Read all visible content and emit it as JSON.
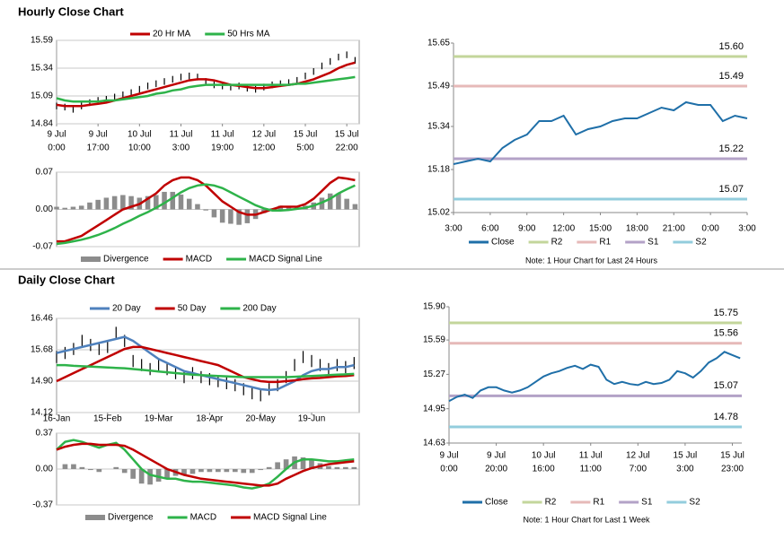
{
  "sections": [
    "Hourly Close Chart",
    "Daily Close Chart"
  ],
  "chart_data": [
    {
      "type": "price",
      "xlim": [
        0,
        36.5
      ],
      "ylim": [
        14.84,
        15.59
      ],
      "yticks": [
        14.84,
        15.09,
        15.34,
        15.59
      ],
      "grid": true,
      "xticks": [
        {
          "value": 0,
          "label": [
            "9 Jul",
            "0:00"
          ]
        },
        {
          "value": 5,
          "label": [
            "9 Jul",
            "17:00"
          ]
        },
        {
          "value": 10,
          "label": [
            "10 Jul",
            "10:00"
          ]
        },
        {
          "value": 15,
          "label": [
            "11 Jul",
            "3:00"
          ]
        },
        {
          "value": 20,
          "label": [
            "11 Jul",
            "19:00"
          ]
        },
        {
          "value": 25,
          "label": [
            "12 Jul",
            "12:00"
          ]
        },
        {
          "value": 30,
          "label": [
            "15 Jul",
            "5:00"
          ]
        },
        {
          "value": 35,
          "label": [
            "15 Jul",
            "22:00"
          ]
        }
      ],
      "price": {
        "color": "#000000",
        "high": [
          15.03,
          15.02,
          15.0,
          15.03,
          15.06,
          15.08,
          15.09,
          15.11,
          15.13,
          15.15,
          15.18,
          15.21,
          15.23,
          15.25,
          15.27,
          15.29,
          15.3,
          15.29,
          15.25,
          15.22,
          15.21,
          15.2,
          15.21,
          15.19,
          15.18,
          15.2,
          15.22,
          15.23,
          15.24,
          15.26,
          15.3,
          15.34,
          15.39,
          15.43,
          15.47,
          15.49,
          15.44
        ],
        "low": [
          14.97,
          14.96,
          14.94,
          14.97,
          15.0,
          15.02,
          15.03,
          15.05,
          15.07,
          15.09,
          15.12,
          15.15,
          15.17,
          15.19,
          15.21,
          15.23,
          15.24,
          15.23,
          15.19,
          15.16,
          15.15,
          15.14,
          15.15,
          15.13,
          15.12,
          15.14,
          15.16,
          15.17,
          15.18,
          15.2,
          15.24,
          15.28,
          15.33,
          15.37,
          15.41,
          15.43,
          15.38
        ]
      },
      "series": [
        {
          "name": "20 Hr MA",
          "color": "#c00000",
          "values": [
            15.01,
            15.0,
            15.0,
            15.0,
            15.01,
            15.02,
            15.03,
            15.05,
            15.07,
            15.09,
            15.11,
            15.13,
            15.15,
            15.17,
            15.19,
            15.21,
            15.23,
            15.24,
            15.24,
            15.23,
            15.21,
            15.19,
            15.18,
            15.17,
            15.16,
            15.16,
            15.17,
            15.18,
            15.19,
            15.2,
            15.22,
            15.24,
            15.27,
            15.3,
            15.34,
            15.37,
            15.39
          ]
        },
        {
          "name": "50 Hrs MA",
          "color": "#2eb34a",
          "values": [
            15.07,
            15.05,
            15.04,
            15.04,
            15.04,
            15.04,
            15.05,
            15.05,
            15.06,
            15.07,
            15.08,
            15.09,
            15.11,
            15.12,
            15.14,
            15.15,
            15.17,
            15.18,
            15.19,
            15.19,
            15.19,
            15.19,
            15.19,
            15.19,
            15.19,
            15.19,
            15.19,
            15.19,
            15.19,
            15.2,
            15.2,
            15.21,
            15.22,
            15.23,
            15.24,
            15.25,
            15.26
          ]
        }
      ]
    },
    {
      "type": "macd",
      "xlim": [
        0,
        36.5
      ],
      "ylim": [
        -0.07,
        0.07
      ],
      "yticks": [
        -0.07,
        {
          "value": 0,
          "label": "0.00"
        },
        0.07
      ],
      "grid": true,
      "series": [
        {
          "name": "Divergence",
          "type": "bar",
          "color": "#8c8c8c",
          "values": [
            0.005,
            0.003,
            0.005,
            0.007,
            0.013,
            0.018,
            0.022,
            0.025,
            0.027,
            0.025,
            0.022,
            0.025,
            0.027,
            0.033,
            0.033,
            0.028,
            0.02,
            0.01,
            -0.002,
            -0.015,
            -0.025,
            -0.027,
            -0.029,
            -0.026,
            -0.018,
            -0.007,
            0.002,
            0.007,
            0.006,
            0.004,
            0.007,
            0.013,
            0.022,
            0.03,
            0.03,
            0.02,
            0.01
          ]
        },
        {
          "name": "MACD",
          "type": "line",
          "color": "#c00000",
          "values": [
            -0.06,
            -0.06,
            -0.055,
            -0.05,
            -0.04,
            -0.03,
            -0.02,
            -0.01,
            0,
            0.005,
            0.01,
            0.02,
            0.03,
            0.045,
            0.055,
            0.06,
            0.06,
            0.055,
            0.045,
            0.03,
            0.015,
            0.005,
            -0.005,
            -0.01,
            -0.01,
            -0.005,
            0,
            0.005,
            0.005,
            0.005,
            0.01,
            0.02,
            0.035,
            0.05,
            0.06,
            0.058,
            0.055
          ]
        },
        {
          "name": "MACD Signal Line",
          "type": "line",
          "color": "#2eb34a",
          "values": [
            -0.065,
            -0.063,
            -0.06,
            -0.057,
            -0.053,
            -0.048,
            -0.042,
            -0.035,
            -0.027,
            -0.02,
            -0.012,
            -0.005,
            0.003,
            0.012,
            0.022,
            0.032,
            0.04,
            0.045,
            0.047,
            0.045,
            0.04,
            0.032,
            0.024,
            0.016,
            0.008,
            0.002,
            -0.002,
            -0.002,
            -0.001,
            0.001,
            0.003,
            0.007,
            0.013,
            0.02,
            0.03,
            0.038,
            0.045
          ]
        }
      ]
    },
    {
      "type": "levels",
      "xlim": [
        0,
        24
      ],
      "ylim": [
        15.02,
        15.65
      ],
      "yticks": [
        15.02,
        15.18,
        15.34,
        15.49,
        15.65
      ],
      "grid": false,
      "xticks": [
        {
          "value": 0,
          "label": "3:00"
        },
        {
          "value": 3,
          "label": "6:00"
        },
        {
          "value": 6,
          "label": "9:00"
        },
        {
          "value": 9,
          "label": "12:00"
        },
        {
          "value": 12,
          "label": "15:00"
        },
        {
          "value": 15,
          "label": "18:00"
        },
        {
          "value": 18,
          "label": "21:00"
        },
        {
          "value": 21,
          "label": "0:00"
        },
        {
          "value": 24,
          "label": "3:00"
        }
      ],
      "series": [
        {
          "name": "Close",
          "type": "line",
          "color": "#1f6fa8",
          "values": [
            15.2,
            15.21,
            15.22,
            15.21,
            15.26,
            15.29,
            15.31,
            15.36,
            15.36,
            15.38,
            15.31,
            15.33,
            15.34,
            15.36,
            15.37,
            15.37,
            15.39,
            15.41,
            15.4,
            15.43,
            15.42,
            15.42,
            15.36,
            15.38,
            15.37
          ]
        }
      ],
      "levels": [
        {
          "name": "R2",
          "color": "#c3d69b",
          "value": 15.6,
          "value_label": "15.60"
        },
        {
          "name": "R1",
          "color": "#e6b9b8",
          "value": 15.49
        },
        {
          "name": "S1",
          "color": "#b3a2c7",
          "value": 15.22
        },
        {
          "name": "S2",
          "color": "#93cddd",
          "value": 15.07
        }
      ],
      "note": "Note: 1 Hour Chart for Last 24 Hours"
    },
    {
      "type": "price",
      "xlim": [
        0,
        35.6
      ],
      "ylim": [
        14.12,
        16.46
      ],
      "yticks": [
        14.12,
        {
          "value": 14.9,
          "label": "14.90"
        },
        15.68,
        16.46
      ],
      "grid": true,
      "xticks": [
        {
          "value": 0,
          "label": "16-Jan"
        },
        {
          "value": 6,
          "label": "15-Feb"
        },
        {
          "value": 12,
          "label": "19-Mar"
        },
        {
          "value": 18,
          "label": "18-Apr"
        },
        {
          "value": 24,
          "label": "20-May"
        },
        {
          "value": 30,
          "label": "19-Jun"
        }
      ],
      "price": {
        "color": "#000000",
        "high": [
          15.65,
          15.75,
          15.85,
          16.05,
          15.95,
          15.85,
          15.9,
          16.25,
          16.05,
          15.55,
          15.45,
          15.35,
          15.45,
          15.35,
          15.25,
          15.15,
          15.25,
          15.15,
          15.1,
          15.05,
          15.0,
          14.95,
          14.85,
          14.75,
          14.7,
          14.85,
          14.95,
          15.15,
          15.45,
          15.65,
          15.55,
          15.45,
          15.35,
          15.45,
          15.4,
          15.5
        ],
        "low": [
          15.35,
          15.45,
          15.55,
          15.75,
          15.65,
          15.55,
          15.6,
          15.95,
          15.75,
          15.25,
          15.15,
          15.05,
          15.15,
          15.05,
          14.95,
          14.85,
          14.95,
          14.85,
          14.8,
          14.75,
          14.7,
          14.65,
          14.55,
          14.45,
          14.4,
          14.55,
          14.65,
          14.85,
          15.15,
          15.35,
          15.25,
          15.15,
          15.05,
          15.15,
          15.1,
          15.2
        ]
      },
      "series": [
        {
          "name": "20 Day",
          "color": "#4f81bd",
          "values": [
            15.6,
            15.65,
            15.7,
            15.75,
            15.8,
            15.85,
            15.9,
            15.95,
            16.0,
            15.9,
            15.75,
            15.6,
            15.45,
            15.35,
            15.25,
            15.15,
            15.1,
            15.05,
            15.0,
            14.95,
            14.9,
            14.85,
            14.8,
            14.75,
            14.7,
            14.68,
            14.7,
            14.8,
            14.9,
            15.05,
            15.15,
            15.2,
            15.2,
            15.25,
            15.25,
            15.3
          ]
        },
        {
          "name": "50 Day",
          "color": "#c00000",
          "values": [
            14.9,
            15.0,
            15.1,
            15.2,
            15.3,
            15.4,
            15.5,
            15.6,
            15.7,
            15.75,
            15.75,
            15.7,
            15.65,
            15.6,
            15.55,
            15.5,
            15.45,
            15.4,
            15.35,
            15.3,
            15.2,
            15.1,
            15.0,
            14.95,
            14.9,
            14.88,
            14.88,
            14.9,
            14.92,
            14.95,
            14.97,
            14.98,
            15.0,
            15.02,
            15.03,
            15.05
          ]
        },
        {
          "name": "200 Day",
          "color": "#2eb34a",
          "values": [
            15.3,
            15.3,
            15.28,
            15.27,
            15.26,
            15.25,
            15.24,
            15.23,
            15.22,
            15.2,
            15.18,
            15.16,
            15.14,
            15.12,
            15.1,
            15.08,
            15.06,
            15.05,
            15.04,
            15.03,
            15.02,
            15.01,
            15.0,
            15.0,
            15.0,
            15.0,
            15.0,
            15.0,
            15.01,
            15.02,
            15.03,
            15.04,
            15.05,
            15.06,
            15.07,
            15.08
          ]
        }
      ]
    },
    {
      "type": "macd",
      "xlim": [
        0,
        35.6
      ],
      "ylim": [
        -0.37,
        0.37
      ],
      "yticks": [
        -0.37,
        {
          "value": 0,
          "label": "0.00"
        },
        0.37
      ],
      "grid": true,
      "series": [
        {
          "name": "Divergence",
          "type": "bar",
          "color": "#8c8c8c",
          "values": [
            0,
            0.05,
            0.05,
            0.02,
            -0.01,
            -0.03,
            0,
            0.02,
            -0.04,
            -0.1,
            -0.15,
            -0.16,
            -0.13,
            -0.1,
            -0.07,
            -0.06,
            -0.05,
            -0.03,
            -0.03,
            -0.03,
            -0.03,
            -0.03,
            -0.04,
            -0.04,
            -0.01,
            0.02,
            0.07,
            0.1,
            0.13,
            0.12,
            0.09,
            0.06,
            0.03,
            0.02,
            0.02,
            0.02
          ]
        },
        {
          "name": "MACD",
          "type": "line",
          "color": "#2eb34a",
          "values": [
            0.2,
            0.28,
            0.3,
            0.28,
            0.25,
            0.22,
            0.25,
            0.27,
            0.2,
            0.1,
            0.0,
            -0.06,
            -0.08,
            -0.1,
            -0.1,
            -0.12,
            -0.13,
            -0.13,
            -0.14,
            -0.15,
            -0.16,
            -0.17,
            -0.19,
            -0.2,
            -0.18,
            -0.15,
            -0.08,
            0.0,
            0.07,
            0.1,
            0.1,
            0.09,
            0.08,
            0.08,
            0.09,
            0.1
          ]
        },
        {
          "name": "MACD Signal Line",
          "type": "line",
          "color": "#c00000",
          "values": [
            0.2,
            0.23,
            0.25,
            0.26,
            0.26,
            0.25,
            0.25,
            0.25,
            0.24,
            0.2,
            0.15,
            0.1,
            0.05,
            0.0,
            -0.03,
            -0.06,
            -0.08,
            -0.1,
            -0.11,
            -0.12,
            -0.13,
            -0.14,
            -0.15,
            -0.16,
            -0.17,
            -0.17,
            -0.15,
            -0.1,
            -0.06,
            -0.02,
            0.01,
            0.03,
            0.05,
            0.06,
            0.07,
            0.08
          ]
        }
      ]
    },
    {
      "type": "levels",
      "xlim": [
        0,
        37.2
      ],
      "ylim": [
        14.63,
        15.9
      ],
      "yticks": [
        14.63,
        14.95,
        15.27,
        15.59,
        {
          "value": 15.9,
          "label": "15.90"
        }
      ],
      "grid": false,
      "xticks": [
        {
          "value": 0,
          "label": [
            "9 Jul",
            "0:00"
          ]
        },
        {
          "value": 6,
          "label": [
            "9 Jul",
            "20:00"
          ]
        },
        {
          "value": 12,
          "label": [
            "10 Jul",
            "16:00"
          ]
        },
        {
          "value": 18,
          "label": [
            "11 Jul",
            "11:00"
          ]
        },
        {
          "value": 24,
          "label": [
            "12 Jul",
            "7:00"
          ]
        },
        {
          "value": 30,
          "label": [
            "15 Jul",
            "3:00"
          ]
        },
        {
          "value": 36,
          "label": [
            "15 Jul",
            "23:00"
          ]
        }
      ],
      "series": [
        {
          "name": "Close",
          "type": "line",
          "color": "#1f6fa8",
          "values": [
            15.02,
            15.06,
            15.08,
            15.05,
            15.12,
            15.15,
            15.15,
            15.12,
            15.1,
            15.12,
            15.15,
            15.2,
            15.25,
            15.28,
            15.3,
            15.33,
            15.35,
            15.32,
            15.36,
            15.34,
            15.22,
            15.18,
            15.2,
            15.18,
            15.17,
            15.2,
            15.18,
            15.19,
            15.22,
            15.3,
            15.28,
            15.24,
            15.3,
            15.38,
            15.42,
            15.48,
            15.45,
            15.42
          ]
        }
      ],
      "levels": [
        {
          "name": "R2",
          "color": "#c3d69b",
          "value": 15.75
        },
        {
          "name": "R1",
          "color": "#e6b9b8",
          "value": 15.56
        },
        {
          "name": "S1",
          "color": "#b3a2c7",
          "value": 15.07
        },
        {
          "name": "S2",
          "color": "#93cddd",
          "value": 14.78
        }
      ],
      "note": "Note: 1 Hour Chart for Last 1 Week"
    }
  ]
}
